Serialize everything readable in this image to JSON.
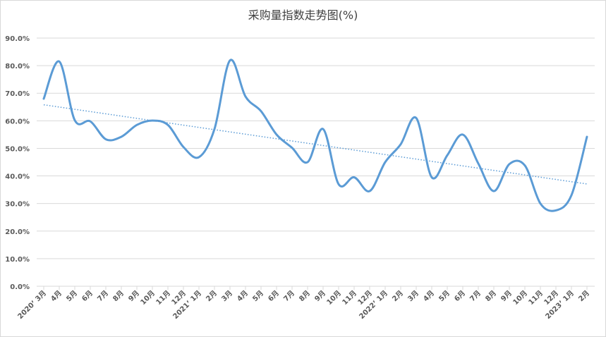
{
  "chart_data": {
    "type": "line",
    "title": "采购量指数走势图(%)",
    "xlabel": "",
    "ylabel": "",
    "ylim": [
      0,
      90
    ],
    "yticks": [
      "0.0%",
      "10.0%",
      "20.0%",
      "30.0%",
      "40.0%",
      "50.0%",
      "60.0%",
      "70.0%",
      "80.0%",
      "90.0%"
    ],
    "grid": true,
    "legend": "none",
    "categories": [
      "2020’ 3月",
      "4月",
      "5月",
      "6月",
      "7月",
      "8月",
      "9月",
      "10月",
      "11月",
      "12月",
      "2021’ 1月",
      "2月",
      "3月",
      "4月",
      "5月",
      "6月",
      "7月",
      "8月",
      "9月",
      "10月",
      "11月",
      "12月",
      "2022’ 1月",
      "2月",
      "3月",
      "4月",
      "5月",
      "6月",
      "7月",
      "8月",
      "9月",
      "10月",
      "11月",
      "12月",
      "2023’ 1月",
      "2月"
    ],
    "series": [
      {
        "values": [
          68.0,
          81.5,
          60.2,
          59.8,
          53.3,
          54.2,
          58.5,
          60.1,
          58.5,
          50.5,
          46.8,
          57.0,
          81.9,
          68.8,
          63.5,
          55.0,
          50.2,
          45.0,
          57.0,
          37.0,
          39.5,
          34.5,
          45.0,
          51.5,
          61.0,
          39.5,
          47.5,
          55.0,
          44.5,
          34.5,
          44.3,
          43.8,
          30.0,
          27.5,
          33.0,
          54.2
        ],
        "color": "#5b9bd5"
      }
    ],
    "trendline": {
      "type": "linear",
      "style": "dotted",
      "color": "#5b9bd5"
    }
  }
}
